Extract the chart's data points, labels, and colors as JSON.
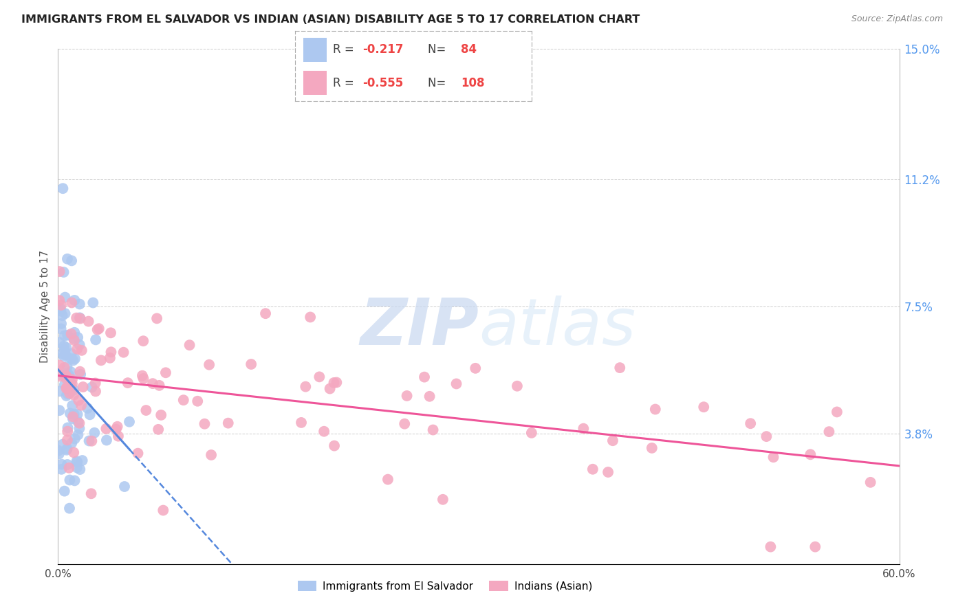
{
  "title": "IMMIGRANTS FROM EL SALVADOR VS INDIAN (ASIAN) DISABILITY AGE 5 TO 17 CORRELATION CHART",
  "source": "Source: ZipAtlas.com",
  "ylabel": "Disability Age 5 to 17",
  "xlim": [
    0.0,
    0.6
  ],
  "ylim": [
    0.0,
    0.15
  ],
  "yticks": [
    0.0,
    0.038,
    0.075,
    0.112,
    0.15
  ],
  "ytick_labels": [
    "",
    "3.8%",
    "7.5%",
    "11.2%",
    "15.0%"
  ],
  "r1": -0.217,
  "n1": 84,
  "r2": -0.555,
  "n2": 108,
  "color1": "#adc8f0",
  "color2": "#f4a8c0",
  "trend1_color": "#5588dd",
  "trend2_color": "#ee5599",
  "legend_label1": "Immigrants from El Salvador",
  "legend_label2": "Indians (Asian)"
}
